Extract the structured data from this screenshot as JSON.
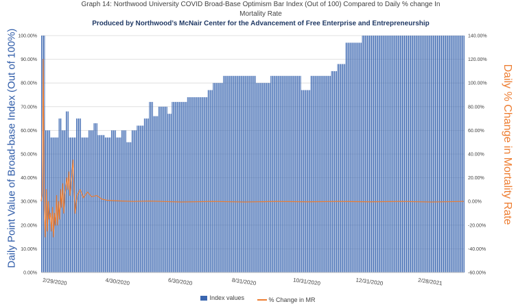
{
  "chart_data": {
    "type": "bar",
    "title_line1": "Graph 14: Northwood University COVID Broad-Base Optimism Bar Index (Out of 100) Compared to Daily % change In",
    "title_line2": "Mortality Rate",
    "subtitle": "Produced by Northwood’s McNair Center for the Advancement of Free Enterprise and Entrepreneurship",
    "ylabel_left": "Daily Point Value of Broad-base Index (Out of 100%)",
    "ylabel_right": "Daily % Change in Mortality Rate",
    "left_axis": {
      "ticks": [
        "0.00%",
        "10.00%",
        "20.00%",
        "30.00%",
        "40.00%",
        "50.00%",
        "60.00%",
        "70.00%",
        "80.00%",
        "90.00%",
        "100.00%"
      ],
      "ylim": [
        0,
        100
      ]
    },
    "right_axis": {
      "ticks": [
        "-60.00%",
        "-40.00%",
        "-20.00%",
        "0.00%",
        "20.00%",
        "40.00%",
        "60.00%",
        "80.00%",
        "100.00%",
        "120.00%",
        "140.00%"
      ],
      "ylim": [
        -60,
        140
      ]
    },
    "x_tick_labels": [
      "2/29/2020",
      "4/30/2020",
      "6/30/2020",
      "8/31/2020",
      "10/31/2020",
      "12/31/2020",
      "2/28/2021"
    ],
    "x_tick_dates": [
      "2020-02-29",
      "2020-04-30",
      "2020-06-30",
      "2020-08-31",
      "2020-10-31",
      "2020-12-31",
      "2021-02-28"
    ],
    "x_range": [
      "2020-02-16",
      "2021-04-02"
    ],
    "grid": true,
    "legend_position": "bottom",
    "series": [
      {
        "name": "Index values",
        "kind": "bar",
        "color": "#3a66b0",
        "segments": [
          {
            "start": "2020-02-16",
            "end": "2020-02-19",
            "value": 100
          },
          {
            "start": "2020-02-20",
            "end": "2020-02-24",
            "value": 60
          },
          {
            "start": "2020-02-25",
            "end": "2020-03-03",
            "value": 57
          },
          {
            "start": "2020-03-04",
            "end": "2020-03-06",
            "value": 65
          },
          {
            "start": "2020-03-07",
            "end": "2020-03-10",
            "value": 60
          },
          {
            "start": "2020-03-11",
            "end": "2020-03-13",
            "value": 68
          },
          {
            "start": "2020-03-14",
            "end": "2020-03-20",
            "value": 57
          },
          {
            "start": "2020-03-21",
            "end": "2020-03-25",
            "value": 65
          },
          {
            "start": "2020-03-26",
            "end": "2020-04-01",
            "value": 57
          },
          {
            "start": "2020-04-02",
            "end": "2020-04-06",
            "value": 60
          },
          {
            "start": "2020-04-07",
            "end": "2020-04-10",
            "value": 63
          },
          {
            "start": "2020-04-11",
            "end": "2020-04-17",
            "value": 58
          },
          {
            "start": "2020-04-18",
            "end": "2020-04-23",
            "value": 57
          },
          {
            "start": "2020-04-24",
            "end": "2020-04-28",
            "value": 60
          },
          {
            "start": "2020-04-29",
            "end": "2020-05-03",
            "value": 57
          },
          {
            "start": "2020-05-04",
            "end": "2020-05-08",
            "value": 60
          },
          {
            "start": "2020-05-09",
            "end": "2020-05-13",
            "value": 55
          },
          {
            "start": "2020-05-14",
            "end": "2020-05-18",
            "value": 60
          },
          {
            "start": "2020-05-19",
            "end": "2020-05-25",
            "value": 62
          },
          {
            "start": "2020-05-26",
            "end": "2020-05-30",
            "value": 65
          },
          {
            "start": "2020-05-31",
            "end": "2020-06-03",
            "value": 72
          },
          {
            "start": "2020-06-04",
            "end": "2020-06-08",
            "value": 66
          },
          {
            "start": "2020-06-09",
            "end": "2020-06-17",
            "value": 70
          },
          {
            "start": "2020-06-18",
            "end": "2020-06-21",
            "value": 67
          },
          {
            "start": "2020-06-22",
            "end": "2020-07-06",
            "value": 72
          },
          {
            "start": "2020-07-07",
            "end": "2020-07-26",
            "value": 74
          },
          {
            "start": "2020-07-27",
            "end": "2020-07-31",
            "value": 77
          },
          {
            "start": "2020-08-01",
            "end": "2020-08-10",
            "value": 80
          },
          {
            "start": "2020-08-11",
            "end": "2020-09-11",
            "value": 83
          },
          {
            "start": "2020-09-12",
            "end": "2020-09-25",
            "value": 80
          },
          {
            "start": "2020-09-26",
            "end": "2020-10-25",
            "value": 83
          },
          {
            "start": "2020-10-26",
            "end": "2020-11-03",
            "value": 77
          },
          {
            "start": "2020-11-04",
            "end": "2020-11-23",
            "value": 83
          },
          {
            "start": "2020-11-24",
            "end": "2020-11-29",
            "value": 85
          },
          {
            "start": "2020-11-30",
            "end": "2020-12-07",
            "value": 88
          },
          {
            "start": "2020-12-08",
            "end": "2020-12-23",
            "value": 97
          },
          {
            "start": "2020-12-24",
            "end": "2021-04-02",
            "value": 100
          }
        ]
      },
      {
        "name": "% Change in MR",
        "kind": "line",
        "color": "#ed7d31",
        "points": [
          [
            "2020-02-16",
            0
          ],
          [
            "2020-02-17",
            8
          ],
          [
            "2020-02-18",
            120
          ],
          [
            "2020-02-19",
            -5
          ],
          [
            "2020-02-20",
            -30
          ],
          [
            "2020-02-21",
            10
          ],
          [
            "2020-02-22",
            -25
          ],
          [
            "2020-02-23",
            0
          ],
          [
            "2020-02-24",
            -15
          ],
          [
            "2020-02-25",
            -10
          ],
          [
            "2020-02-26",
            -25
          ],
          [
            "2020-02-27",
            -5
          ],
          [
            "2020-02-28",
            -30
          ],
          [
            "2020-02-29",
            -10
          ],
          [
            "2020-03-01",
            -20
          ],
          [
            "2020-03-02",
            5
          ],
          [
            "2020-03-03",
            -20
          ],
          [
            "2020-03-04",
            0
          ],
          [
            "2020-03-05",
            -15
          ],
          [
            "2020-03-06",
            10
          ],
          [
            "2020-03-07",
            -5
          ],
          [
            "2020-03-08",
            15
          ],
          [
            "2020-03-09",
            -10
          ],
          [
            "2020-03-10",
            5
          ],
          [
            "2020-03-12",
            20
          ],
          [
            "2020-03-13",
            10
          ],
          [
            "2020-03-14",
            25
          ],
          [
            "2020-03-15",
            5
          ],
          [
            "2020-03-16",
            15
          ],
          [
            "2020-03-18",
            35
          ],
          [
            "2020-03-19",
            10
          ],
          [
            "2020-03-20",
            -10
          ],
          [
            "2020-03-22",
            5
          ],
          [
            "2020-03-25",
            10
          ],
          [
            "2020-03-28",
            3
          ],
          [
            "2020-04-01",
            8
          ],
          [
            "2020-04-05",
            4
          ],
          [
            "2020-04-10",
            5
          ],
          [
            "2020-04-15",
            2
          ],
          [
            "2020-04-20",
            1
          ],
          [
            "2020-05-01",
            0.5
          ],
          [
            "2020-05-15",
            0
          ],
          [
            "2020-06-01",
            0.3
          ],
          [
            "2020-07-01",
            -0.5
          ],
          [
            "2020-08-01",
            0
          ],
          [
            "2020-09-01",
            -0.5
          ],
          [
            "2020-10-01",
            0
          ],
          [
            "2020-11-01",
            -0.3
          ],
          [
            "2020-12-01",
            0
          ],
          [
            "2021-01-01",
            -0.3
          ],
          [
            "2021-02-01",
            0
          ],
          [
            "2021-03-01",
            -0.5
          ],
          [
            "2021-04-02",
            0
          ]
        ]
      }
    ]
  }
}
